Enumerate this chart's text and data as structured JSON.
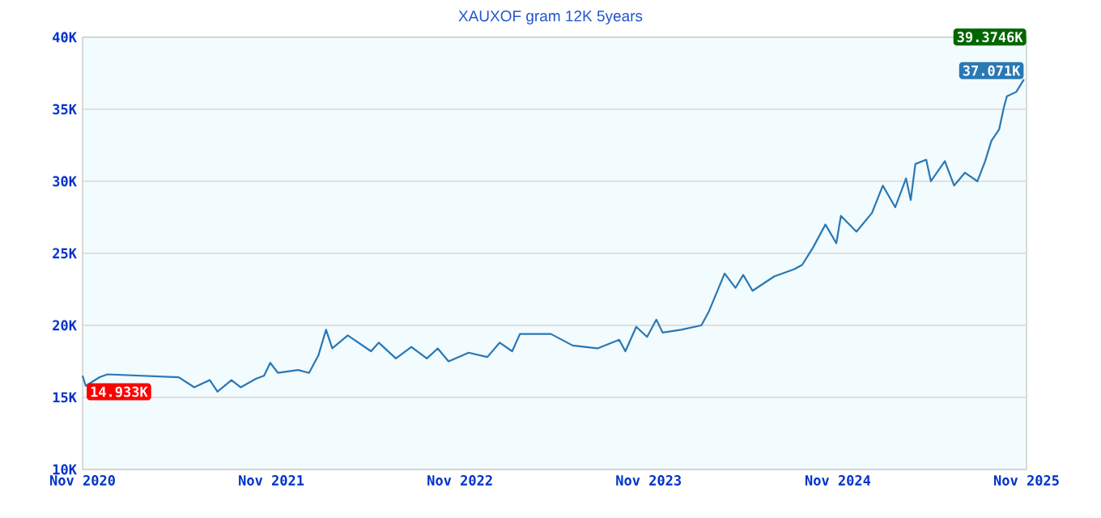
{
  "chart_data": {
    "type": "line",
    "title": "XAUXOF gram 12K 5years",
    "xlim": [
      "2020-11-01",
      "2025-11-01"
    ],
    "xticks": [
      {
        "value": "2020-11-01",
        "label": "Nov 2020"
      },
      {
        "value": "2021-11-01",
        "label": "Nov 2021"
      },
      {
        "value": "2022-11-01",
        "label": "Nov 2022"
      },
      {
        "value": "2023-11-01",
        "label": "Nov 2023"
      },
      {
        "value": "2024-11-01",
        "label": "Nov 2024"
      },
      {
        "value": "2025-11-01",
        "label": "Nov 2025"
      }
    ],
    "ylim": [
      10000,
      40000
    ],
    "yticks": [
      {
        "value": 10000,
        "label": "10K"
      },
      {
        "value": 15000,
        "label": "15K"
      },
      {
        "value": 20000,
        "label": "20K"
      },
      {
        "value": 25000,
        "label": "25K"
      },
      {
        "value": 30000,
        "label": "30K"
      },
      {
        "value": 35000,
        "label": "35K"
      },
      {
        "value": 40000,
        "label": "40K"
      }
    ],
    "grid": "y",
    "marker": "none",
    "line_style": "solid",
    "annotations": [
      "14.933K",
      {
        "text": "37.071K",
        "x": "2025-10-27",
        "y": 37071
      },
      "39.3746K"
    ],
    "series": [
      {
        "color": "#2a78b4",
        "x": [
          "2020-11-01",
          "2020-11-07",
          "2020-12-04",
          "2020-12-19",
          "2021-05-06",
          "2021-06-05",
          "2021-07-05",
          "2021-07-20",
          "2021-08-16",
          "2021-09-03",
          "2021-10-03",
          "2021-10-18",
          "2021-10-30",
          "2021-11-14",
          "2021-12-23",
          "2022-01-13",
          "2022-01-31",
          "2022-02-15",
          "2022-02-27",
          "2022-03-29",
          "2022-05-13",
          "2022-05-28",
          "2022-06-30",
          "2022-07-30",
          "2022-08-29",
          "2022-09-19",
          "2022-10-10",
          "2022-11-18",
          "2022-12-24",
          "2023-01-17",
          "2023-02-10",
          "2023-02-25",
          "2023-03-18",
          "2023-04-26",
          "2023-06-07",
          "2023-07-25",
          "2023-09-05",
          "2023-09-17",
          "2023-10-08",
          "2023-10-29",
          "2023-11-16",
          "2023-11-28",
          "2024-01-03",
          "2024-02-11",
          "2024-02-26",
          "2024-03-27",
          "2024-04-17",
          "2024-05-02",
          "2024-05-20",
          "2024-07-01",
          "2024-08-09",
          "2024-08-24",
          "2024-09-14",
          "2024-10-08",
          "2024-10-29",
          "2024-11-07",
          "2024-12-07",
          "2025-01-06",
          "2025-01-27",
          "2025-02-20",
          "2025-03-13",
          "2025-03-22",
          "2025-03-31",
          "2025-04-21",
          "2025-04-30",
          "2025-05-27",
          "2025-06-14",
          "2025-07-05",
          "2025-07-29",
          "2025-08-13",
          "2025-08-25",
          "2025-09-09",
          "2025-09-18",
          "2025-09-24",
          "2025-10-12",
          "2025-10-27"
        ],
        "values": [
          16500,
          15800,
          16400,
          16600,
          16400,
          15700,
          16200,
          15400,
          16200,
          15700,
          16300,
          16500,
          17400,
          16700,
          16900,
          16700,
          17900,
          19700,
          18400,
          19300,
          18200,
          18800,
          17700,
          18500,
          17700,
          18400,
          17500,
          18100,
          17800,
          18800,
          18200,
          19400,
          19400,
          19400,
          18600,
          18400,
          19000,
          18200,
          19900,
          19200,
          20400,
          19500,
          19700,
          20000,
          21000,
          23600,
          22600,
          23500,
          22400,
          23400,
          23900,
          24200,
          25400,
          27000,
          25700,
          27600,
          26500,
          27800,
          29700,
          28200,
          30200,
          28700,
          31200,
          31500,
          30000,
          31400,
          29700,
          30600,
          30000,
          31400,
          32800,
          33600,
          35100,
          35900,
          36200,
          37071
        ]
      }
    ]
  }
}
